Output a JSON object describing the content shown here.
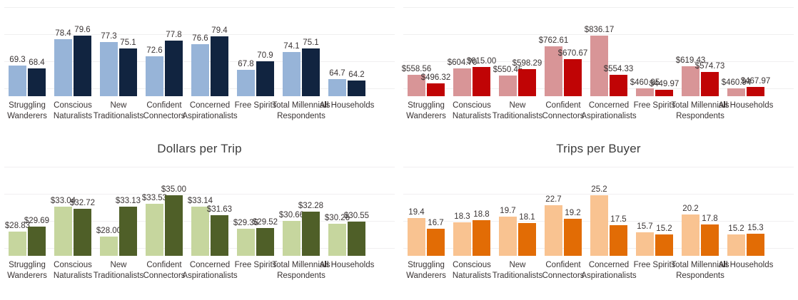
{
  "page": {
    "background": "#ffffff"
  },
  "chart_data": [
    {
      "position": "top-left",
      "type": "bar",
      "title": "",
      "categories": [
        "Struggling Wanderers",
        "Conscious Naturalists",
        "New Traditionalists",
        "Confident Connectors",
        "Concerned Aspirationalists",
        "Free Spirits",
        "Total Millennials Respondents",
        "All Households"
      ],
      "series": [
        {
          "color": "#97b4d8",
          "values": [
            69.3,
            78.4,
            77.3,
            72.6,
            76.6,
            67.8,
            74.1,
            64.7
          ],
          "labels": [
            "69.3",
            "78.4",
            "77.3",
            "72.6",
            "76.6",
            "67.8",
            "74.1",
            "64.7"
          ]
        },
        {
          "color": "#112440",
          "values": [
            68.4,
            79.6,
            75.1,
            77.8,
            79.4,
            70.9,
            75.1,
            64.2
          ],
          "labels": [
            "68.4",
            "79.6",
            "75.1",
            "77.8",
            "79.4",
            "70.9",
            "75.1",
            "64.2"
          ]
        }
      ],
      "ylim_base": 58.8,
      "grid": true,
      "legend": "none"
    },
    {
      "position": "top-right",
      "type": "bar",
      "title": "",
      "categories": [
        "Struggling Wanderers",
        "Conscious Naturalists",
        "New Traditionalists",
        "Confident Connectors",
        "Concerned Aspirationalists",
        "Free Spirits",
        "Total Millennials Respondents",
        "All Households"
      ],
      "series": [
        {
          "color": "#d89597",
          "values": [
            558.56,
            604.7,
            550.45,
            762.61,
            836.17,
            460.95,
            619.43,
            460.94
          ],
          "labels": [
            "$558.56",
            "$604.70",
            "$550.45",
            "$762.61",
            "$836.17",
            "$460.95",
            "$619.43",
            "$460.94"
          ]
        },
        {
          "color": "#c00405",
          "values": [
            496.32,
            615.0,
            598.29,
            670.67,
            554.33,
            449.97,
            574.73,
            467.97
          ],
          "labels": [
            "$496.32",
            "$615.00",
            "$598.29",
            "$670.67",
            "$554.33",
            "$449.97",
            "$574.73",
            "$467.97"
          ]
        }
      ],
      "ylim_base": 404,
      "grid": true,
      "legend": "none"
    },
    {
      "position": "bottom-left",
      "type": "bar",
      "title": "Dollars per Trip",
      "categories": [
        "Struggling Wanderers",
        "Conscious Naturalists",
        "New Traditionalists",
        "Confident Connectors",
        "Concerned Aspirationalists",
        "Free Spirits",
        "Total Millennials Respondents",
        "All Households"
      ],
      "series": [
        {
          "color": "#c6d69e",
          "values": [
            28.83,
            33.04,
            28.0,
            33.53,
            33.14,
            29.36,
            30.66,
            30.26
          ],
          "labels": [
            "$28.83",
            "$33.04",
            "$28.00",
            "$33.53",
            "$33.14",
            "$29.36",
            "$30.66",
            "$30.26"
          ]
        },
        {
          "color": "#4f5f28",
          "values": [
            29.69,
            32.72,
            33.13,
            35.0,
            31.63,
            29.52,
            32.28,
            30.55
          ],
          "labels": [
            "$29.69",
            "$32.72",
            "$33.13",
            "$35.00",
            "$31.63",
            "$29.52",
            "$32.28",
            "$30.55"
          ]
        }
      ],
      "ylim_base": 24.8,
      "grid": true,
      "legend": "none"
    },
    {
      "position": "bottom-right",
      "type": "bar",
      "title": "Trips per Buyer",
      "categories": [
        "Struggling Wanderers",
        "Conscious Naturalists",
        "New Traditionalists",
        "Confident Connectors",
        "Concerned Aspirationalists",
        "Free Spirits",
        "Total Millennials Respondents",
        "All Households"
      ],
      "series": [
        {
          "color": "#f9c391",
          "values": [
            19.4,
            18.3,
            19.7,
            22.7,
            25.2,
            15.7,
            20.2,
            15.2
          ],
          "labels": [
            "19.4",
            "18.3",
            "19.7",
            "22.7",
            "25.2",
            "15.7",
            "20.2",
            "15.2"
          ]
        },
        {
          "color": "#e26c05",
          "values": [
            16.7,
            18.8,
            18.1,
            19.2,
            17.5,
            15.2,
            17.8,
            15.3
          ],
          "labels": [
            "16.7",
            "18.8",
            "18.1",
            "19.2",
            "17.5",
            "15.2",
            "17.8",
            "15.3"
          ]
        }
      ],
      "ylim_base": 9.7,
      "grid": true,
      "legend": "none"
    }
  ]
}
